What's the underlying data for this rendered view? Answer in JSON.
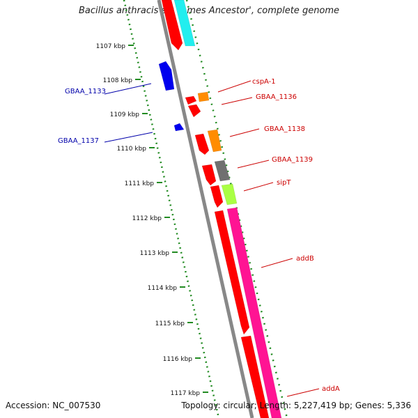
{
  "title": "Bacillus anthracis str. 'Ames Ancestor', complete genome",
  "footer": {
    "accession": "Accession: NC_007530",
    "stats": "Topology: circular; Length: 5,227,419 bp; Genes: 5,336"
  },
  "ticks": [
    {
      "label": "1107 kbp"
    },
    {
      "label": "1108 kbp"
    },
    {
      "label": "1109 kbp"
    },
    {
      "label": "1110 kbp"
    },
    {
      "label": "1111 kbp"
    },
    {
      "label": "1112 kbp"
    },
    {
      "label": "1113 kbp"
    },
    {
      "label": "1114 kbp"
    },
    {
      "label": "1115 kbp"
    },
    {
      "label": "1116 kbp"
    },
    {
      "label": "1117 kbp"
    }
  ],
  "gene_labels": [
    {
      "text": "GBAA_1133",
      "color": "#0000aa",
      "side": "left"
    },
    {
      "text": "GBAA_1137",
      "color": "#0000aa",
      "side": "left"
    },
    {
      "text": "cspA-1",
      "color": "#cc0000",
      "side": "right"
    },
    {
      "text": "GBAA_1136",
      "color": "#cc0000",
      "side": "right"
    },
    {
      "text": "GBAA_1138",
      "color": "#cc0000",
      "side": "right"
    },
    {
      "text": "GBAA_1139",
      "color": "#cc0000",
      "side": "right"
    },
    {
      "text": "sipT",
      "color": "#cc0000",
      "side": "right"
    },
    {
      "text": "addB",
      "color": "#cc0000",
      "side": "right"
    },
    {
      "text": "addA",
      "color": "#cc0000",
      "side": "right"
    }
  ],
  "colors": {
    "cds_red": "#ff0000",
    "cds_blue": "#0000ee",
    "orange": "#ff8c00",
    "gray": "#707070",
    "lime": "#aaff44",
    "magenta": "#ff1493",
    "cyan": "#22eeee",
    "backbone": "#888888",
    "tick": "#228b22",
    "label_blue": "#0000aa",
    "label_red": "#cc0000"
  }
}
